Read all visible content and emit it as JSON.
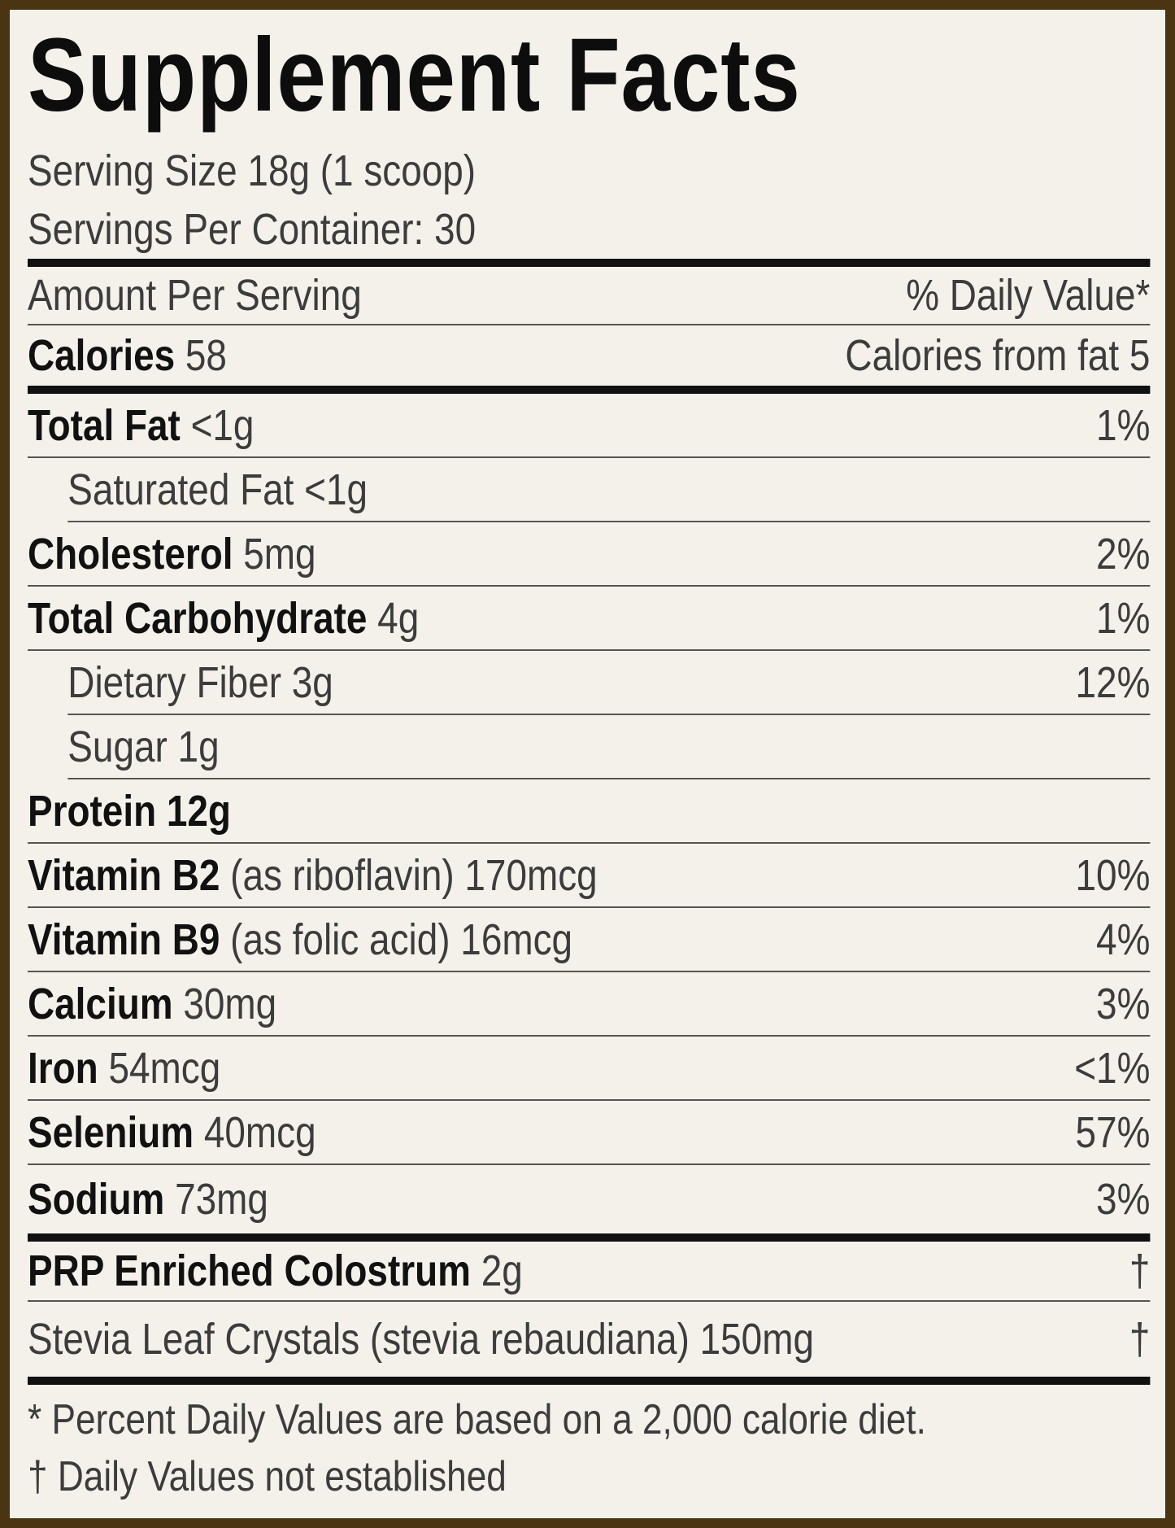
{
  "header": {
    "title": "Supplement Facts",
    "serving_size": "Serving Size 18g (1 scoop)",
    "servings_per_container": "Servings Per Container: 30"
  },
  "amount_header": {
    "left": "Amount Per Serving",
    "right": "% Daily Value*"
  },
  "calories": {
    "label": "Calories",
    "amount": "58",
    "right": "Calories from fat 5"
  },
  "nutrients": [
    {
      "label": "Total Fat",
      "amount": "<1g",
      "dv": "1%",
      "bold": true,
      "indent": false
    },
    {
      "label": "Saturated Fat",
      "amount": "<1g",
      "bold": false,
      "indent": true
    },
    {
      "label": "Cholesterol",
      "amount": "5mg",
      "dv": "2%",
      "bold": true,
      "indent": false
    },
    {
      "label": "Total Carbohydrate",
      "amount": "4g",
      "dv": "1%",
      "bold": true,
      "indent": false
    },
    {
      "label": "Dietary Fiber",
      "amount": "3g",
      "dv": "12%",
      "bold": false,
      "indent": true
    },
    {
      "label": "Sugar",
      "amount": "1g",
      "bold": false,
      "indent": true
    },
    {
      "label": "Protein 12g",
      "bold": true,
      "indent": false
    },
    {
      "label": "Vitamin B2",
      "amount": "(as riboflavin) 170mcg",
      "dv": "10%",
      "bold": true,
      "indent": false
    },
    {
      "label": "Vitamin B9",
      "amount": "(as folic acid) 16mcg",
      "dv": "4%",
      "bold": true,
      "indent": false
    },
    {
      "label": "Calcium",
      "amount": "30mg",
      "dv": "3%",
      "bold": true,
      "indent": false
    },
    {
      "label": "Iron",
      "amount": "54mcg",
      "dv": "<1%",
      "bold": true,
      "indent": false
    },
    {
      "label": "Selenium",
      "amount": "40mcg",
      "dv": "57%",
      "bold": true,
      "indent": false
    },
    {
      "label": "Sodium",
      "amount": "73mg",
      "dv": "3%",
      "bold": true,
      "indent": false
    }
  ],
  "other_ingredients": [
    {
      "label": "PRP Enriched Colostrum",
      "amount": "2g",
      "dv": "†",
      "bold": true,
      "indent": false
    },
    {
      "label": "Stevia Leaf Crystals (stevia rebaudiana)",
      "amount": "150mg",
      "dv": "†",
      "bold": false,
      "indent": false
    }
  ],
  "footnotes": [
    "* Percent Daily Values are based on a 2,000 calorie diet.",
    "† Daily Values not established"
  ]
}
